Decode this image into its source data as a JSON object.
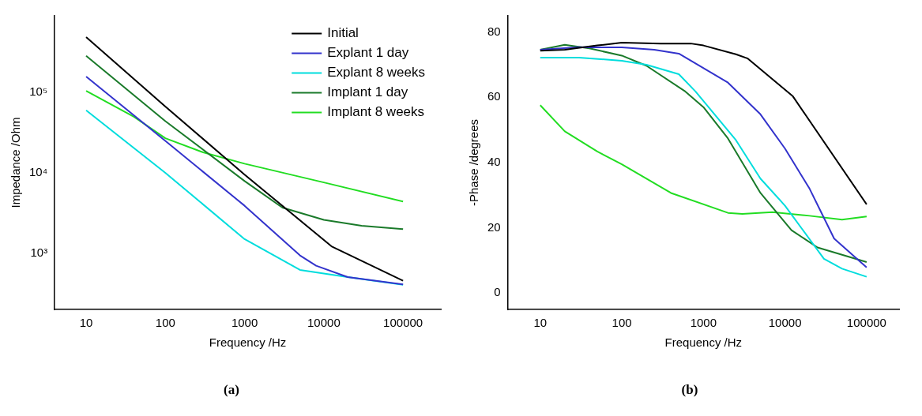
{
  "chart_data": [
    {
      "type": "line",
      "xlabel": "Frequency /Hz",
      "ylabel": "Impedance /Ohm",
      "log": "xy",
      "legend": "top right",
      "annotations": [
        "(a)"
      ],
      "xlim": [
        4,
        300000
      ],
      "xticks": [
        10,
        100,
        1000,
        10000,
        100000
      ],
      "ylim": [
        200,
        900000
      ],
      "yticks": [
        {
          "value": 1000,
          "label": "10³"
        },
        {
          "value": 10000,
          "label": "10⁴"
        },
        {
          "value": 100000,
          "label": "10⁵"
        }
      ],
      "series": [
        {
          "name": "Initial",
          "color": "#000000",
          "x": [
            10,
            100,
            1000,
            12500,
            100000
          ],
          "values": [
            490000,
            67000,
            9500,
            1220,
            455
          ]
        },
        {
          "name": "Explant 1 day",
          "color": "#3333cc",
          "x": [
            10,
            100,
            1000,
            5000,
            8000,
            20000,
            100000
          ],
          "values": [
            158000,
            25000,
            3900,
            940,
            700,
            505,
            410
          ]
        },
        {
          "name": "Explant 8 weeks",
          "color": "#00dddd",
          "x": [
            10,
            100,
            1000,
            5000,
            20000,
            100000
          ],
          "values": [
            60000,
            10000,
            1500,
            620,
            505,
            405
          ]
        },
        {
          "name": "Implant 1 day",
          "color": "#1a7a2a",
          "x": [
            10,
            100,
            1000,
            3000,
            10000,
            30000,
            100000
          ],
          "values": [
            285000,
            44000,
            7900,
            3700,
            2600,
            2200,
            2000
          ]
        },
        {
          "name": "Implant 8 weeks",
          "color": "#22dd22",
          "x": [
            10,
            40,
            100,
            300,
            1000,
            10000,
            100000
          ],
          "values": [
            105000,
            50000,
            27000,
            18000,
            13000,
            7600,
            4400
          ]
        }
      ]
    },
    {
      "type": "line",
      "xlabel": "Frequency /Hz",
      "ylabel": "-Phase /degrees",
      "log": "x",
      "annotations": [
        "(b)"
      ],
      "xlim": [
        4,
        250000
      ],
      "xticks": [
        10,
        100,
        1000,
        10000,
        100000
      ],
      "ylim": [
        -5,
        85
      ],
      "yticks": [
        0,
        20,
        40,
        60,
        80
      ],
      "series": [
        {
          "color": "#000000",
          "x": [
            10,
            20,
            50,
            100,
            300,
            700,
            1000,
            2500,
            3500,
            12500,
            100000
          ],
          "values": [
            74.3,
            74.6,
            75.9,
            76.8,
            76.5,
            76.5,
            75.9,
            73.2,
            71.9,
            60.3,
            27.2
          ]
        },
        {
          "color": "#3333cc",
          "x": [
            10,
            30,
            100,
            250,
            500,
            2000,
            5000,
            10000,
            20000,
            40000,
            100000
          ],
          "values": [
            74.6,
            75.4,
            75.3,
            74.6,
            73.4,
            64.5,
            54.8,
            44.3,
            32,
            16.7,
            7.9
          ]
        },
        {
          "color": "#00dddd",
          "x": [
            10,
            30,
            100,
            200,
            500,
            800,
            2500,
            5000,
            10000,
            30000,
            50000,
            100000
          ],
          "values": [
            72.2,
            72.2,
            71.2,
            70,
            67.1,
            61.8,
            46.9,
            35.1,
            26.8,
            10.5,
            7.5,
            5
          ]
        },
        {
          "color": "#1a7a2a",
          "x": [
            10,
            20,
            40,
            100,
            200,
            600,
            1000,
            2000,
            5000,
            12000,
            25000,
            100000
          ],
          "values": [
            74.6,
            76.1,
            75,
            72.8,
            69.7,
            61.8,
            57,
            47.4,
            30.7,
            19.3,
            14,
            9.5
          ]
        },
        {
          "color": "#22dd22",
          "x": [
            10,
            20,
            50,
            100,
            400,
            2000,
            3000,
            7000,
            20000,
            50000,
            100000
          ],
          "values": [
            57.6,
            49.6,
            43.4,
            39.5,
            30.7,
            24.6,
            24.3,
            24.8,
            23.7,
            22.5,
            23.5
          ]
        }
      ]
    }
  ]
}
